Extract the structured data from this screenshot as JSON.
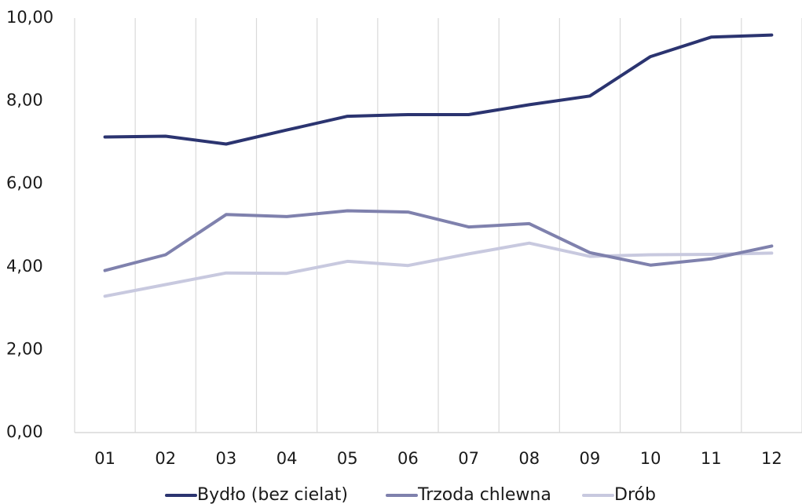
{
  "chart_data": {
    "type": "line",
    "title": "",
    "xlabel": "",
    "ylabel": "",
    "categories": [
      "01",
      "02",
      "03",
      "04",
      "05",
      "06",
      "07",
      "08",
      "09",
      "10",
      "11",
      "12"
    ],
    "y_tick_labels": [
      "0,00",
      "2,00",
      "4,00",
      "6,00",
      "8,00",
      "10,00"
    ],
    "y_ticks": [
      0,
      2,
      4,
      6,
      8,
      10
    ],
    "ylim": [
      0,
      10
    ],
    "grid": "vertical",
    "legend_position": "bottom",
    "series": [
      {
        "name": "Bydło (bez cielat)",
        "color": "#2b3470",
        "values": [
          7.13,
          7.15,
          6.96,
          7.3,
          7.63,
          7.67,
          7.67,
          7.91,
          8.12,
          9.07,
          9.54,
          9.59
        ]
      },
      {
        "name": "Trzoda chlewna",
        "color": "#7f81ad",
        "values": [
          3.91,
          4.29,
          5.26,
          5.21,
          5.35,
          5.32,
          4.96,
          5.04,
          4.34,
          4.04,
          4.19,
          4.5
        ]
      },
      {
        "name": "Drób",
        "color": "#c8c9df",
        "values": [
          3.29,
          3.57,
          3.85,
          3.84,
          4.13,
          4.03,
          4.31,
          4.57,
          4.25,
          4.29,
          4.3,
          4.33
        ]
      }
    ]
  }
}
